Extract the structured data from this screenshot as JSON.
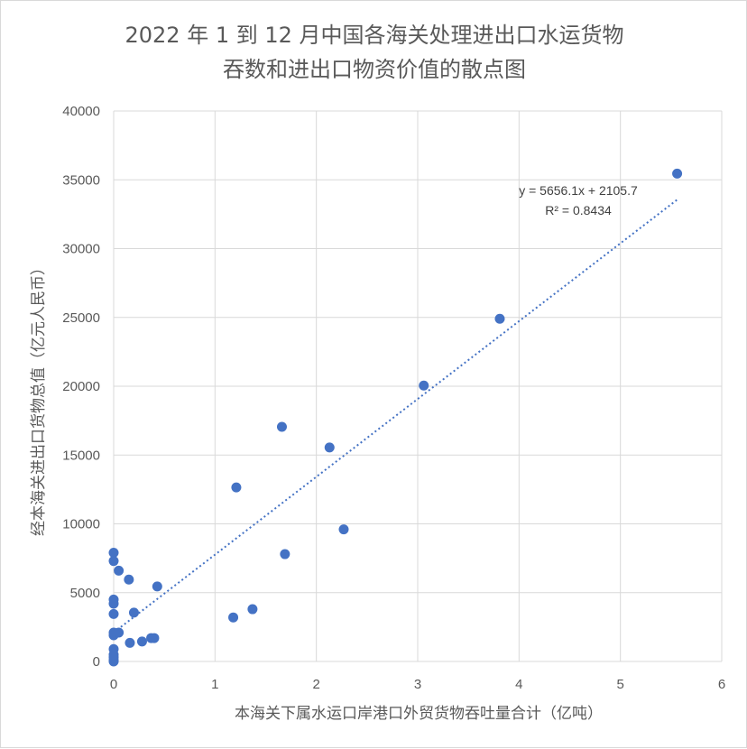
{
  "chart_data": {
    "type": "scatter",
    "title": [
      "2022 年 1 到 12 月中国各海关处理进出口水运货物",
      "吞数和进出口物资价值的散点图"
    ],
    "xlabel": "本海关下属水运口岸港口外贸货物吞吐量合计（亿吨）",
    "ylabel": "经本海关进出口货物总值（亿元人民币）",
    "xlim": [
      0,
      6
    ],
    "ylim": [
      0,
      40000
    ],
    "x_ticks": [
      "0",
      "1",
      "2",
      "3",
      "4",
      "5",
      "6"
    ],
    "y_ticks": [
      "0",
      "5000",
      "10000",
      "15000",
      "20000",
      "25000",
      "30000",
      "35000",
      "40000"
    ],
    "grid": true,
    "legend": "none",
    "colors": {
      "marker": "#4472c4",
      "grid": "#d9d9d9",
      "trend": "#4472c4"
    },
    "points": [
      {
        "x": 0.0,
        "y": 0
      },
      {
        "x": 0.0,
        "y": 100
      },
      {
        "x": 0.0,
        "y": 300
      },
      {
        "x": 0.0,
        "y": 500
      },
      {
        "x": 0.0,
        "y": 900
      },
      {
        "x": 0.0,
        "y": 1900
      },
      {
        "x": 0.0,
        "y": 2100
      },
      {
        "x": 0.0,
        "y": 3450
      },
      {
        "x": 0.0,
        "y": 4200
      },
      {
        "x": 0.0,
        "y": 4500
      },
      {
        "x": 0.0,
        "y": 7300
      },
      {
        "x": 0.0,
        "y": 7900
      },
      {
        "x": 0.05,
        "y": 2100
      },
      {
        "x": 0.05,
        "y": 6600
      },
      {
        "x": 0.15,
        "y": 5950
      },
      {
        "x": 0.16,
        "y": 1350
      },
      {
        "x": 0.2,
        "y": 3550
      },
      {
        "x": 0.28,
        "y": 1450
      },
      {
        "x": 0.37,
        "y": 1700
      },
      {
        "x": 0.4,
        "y": 1700
      },
      {
        "x": 0.43,
        "y": 5450
      },
      {
        "x": 1.18,
        "y": 3200
      },
      {
        "x": 1.21,
        "y": 12650
      },
      {
        "x": 1.37,
        "y": 3800
      },
      {
        "x": 1.66,
        "y": 17050
      },
      {
        "x": 1.69,
        "y": 7800
      },
      {
        "x": 2.13,
        "y": 15550
      },
      {
        "x": 2.27,
        "y": 9600
      },
      {
        "x": 3.06,
        "y": 20050
      },
      {
        "x": 3.81,
        "y": 24900
      },
      {
        "x": 5.56,
        "y": 35450
      }
    ],
    "trendline": {
      "type": "linear",
      "slope": 5656.1,
      "intercept": 2105.7,
      "x_range": [
        0,
        5.56
      ],
      "equation": "y = 5656.1x + 2105.7",
      "r_squared": "R² = 0.8434"
    }
  }
}
